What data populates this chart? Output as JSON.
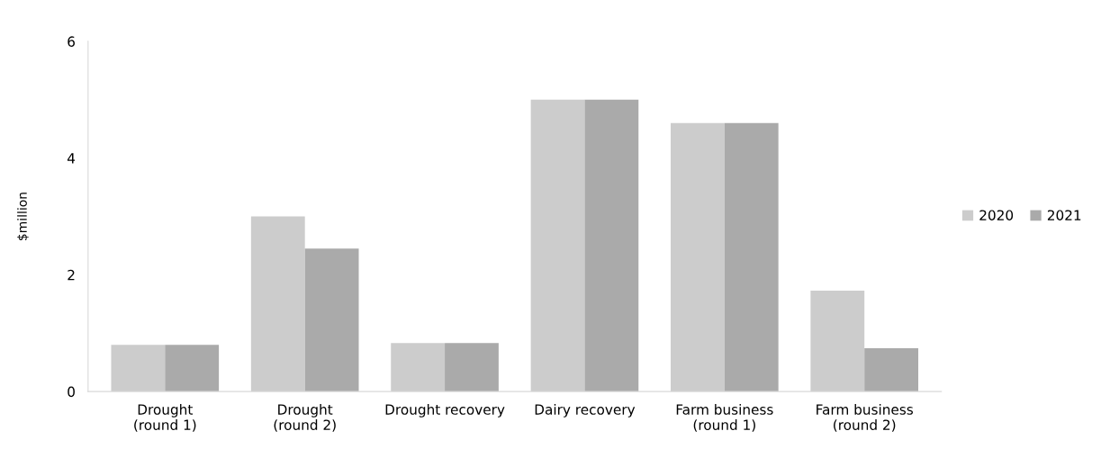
{
  "chart_data": {
    "type": "bar",
    "ylabel": "$million",
    "categories": [
      "Drought\n(round 1)",
      "Drought\n(round 2)",
      "Drought recovery",
      "Dairy recovery",
      "Farm business\n(round 1)",
      "Farm business\n(round 2)"
    ],
    "series": [
      {
        "name": "2020",
        "color": "#cccccc",
        "values": [
          0.8,
          3.0,
          0.83,
          5.0,
          4.6,
          1.73
        ]
      },
      {
        "name": "2021",
        "color": "#aaaaaa",
        "values": [
          0.8,
          2.45,
          0.83,
          5.0,
          4.6,
          0.74
        ]
      }
    ],
    "ylim": [
      0,
      6
    ],
    "yticks": [
      0,
      2,
      4,
      6
    ],
    "grid": false,
    "legend": "right"
  }
}
